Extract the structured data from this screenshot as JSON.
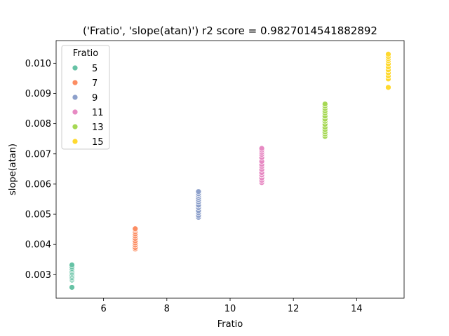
{
  "chart_data": {
    "type": "scatter",
    "title": "('Fratio', 'slope(atan)') r2 score = 0.9827014541882892",
    "xlabel": "Fratio",
    "ylabel": "slope(atan)",
    "xlim": [
      4.5,
      15.5
    ],
    "ylim": [
      0.00222,
      0.01075
    ],
    "xticks": [
      6,
      8,
      10,
      12,
      14
    ],
    "yticks": [
      0.003,
      0.004,
      0.005,
      0.006,
      0.007,
      0.008,
      0.009,
      0.01
    ],
    "xtick_labels": [
      "6",
      "8",
      "10",
      "12",
      "14"
    ],
    "ytick_labels": [
      "0.003",
      "0.004",
      "0.005",
      "0.006",
      "0.007",
      "0.008",
      "0.009",
      "0.010"
    ],
    "grid": false,
    "legend": {
      "title": "Fratio",
      "placement": "upper-left"
    },
    "series": [
      {
        "name": "5",
        "color": "#66c2a5",
        "x": 5,
        "values": [
          0.00258,
          0.00282,
          0.00286,
          0.0029,
          0.00295,
          0.003,
          0.00305,
          0.0031,
          0.00315,
          0.0032,
          0.00326,
          0.00332
        ]
      },
      {
        "name": "7",
        "color": "#fc8d62",
        "x": 7,
        "values": [
          0.00385,
          0.0039,
          0.00398,
          0.00405,
          0.00412,
          0.0042,
          0.00428,
          0.00435,
          0.00442,
          0.00448,
          0.00452
        ]
      },
      {
        "name": "9",
        "color": "#8da0cb",
        "x": 9,
        "values": [
          0.0049,
          0.00496,
          0.00505,
          0.00512,
          0.00522,
          0.0053,
          0.0054,
          0.00548,
          0.00555,
          0.00562,
          0.00568,
          0.00575
        ]
      },
      {
        "name": "11",
        "color": "#e78ac3",
        "x": 11,
        "values": [
          0.00605,
          0.00612,
          0.0062,
          0.0063,
          0.00638,
          0.00648,
          0.00658,
          0.00665,
          0.00675,
          0.00688,
          0.00698,
          0.00705,
          0.00712,
          0.00718
        ]
      },
      {
        "name": "13",
        "color": "#a6d854",
        "x": 13,
        "values": [
          0.00758,
          0.00765,
          0.00772,
          0.0078,
          0.00788,
          0.00798,
          0.00808,
          0.00815,
          0.00825,
          0.00835,
          0.00842,
          0.0085,
          0.00858,
          0.00865
        ]
      },
      {
        "name": "15",
        "color": "#ffd92f",
        "x": 15,
        "values": [
          0.0092,
          0.00948,
          0.00958,
          0.00968,
          0.00978,
          0.00988,
          0.00998,
          0.01008,
          0.01015,
          0.01022,
          0.0103
        ]
      }
    ]
  }
}
